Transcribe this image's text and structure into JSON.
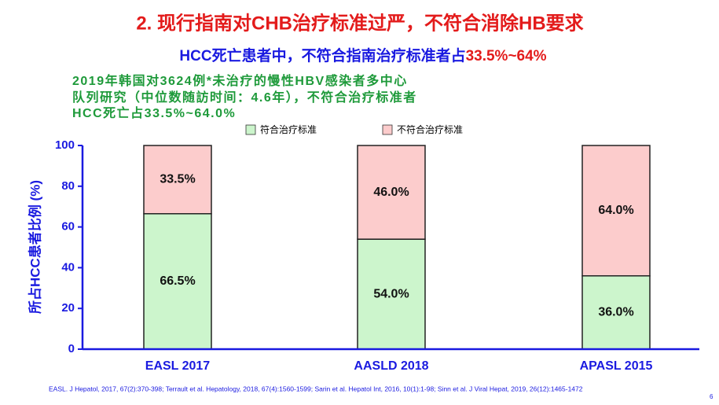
{
  "header": {
    "title": "2. 现行指南对CHB治疗标准过严，不符合消除HB要求",
    "subtitle": "HCC死亡患者中，不符合指南治疗标准者占",
    "subtitle_highlight": "33.5%~64%"
  },
  "description": [
    "2019年韩国对3624例*未治疗的慢性HBV感染者多中心",
    "队列研究（中位数随訪时间：4.6年），不符合治疗标准者",
    "HCC死亡占33.5%~64.0%"
  ],
  "chart_data": {
    "type": "stacked_bar",
    "y_label": "所占HCC患者比例 (%)",
    "categories": [
      "EASL 2017",
      "AASLD 2018",
      "APASL 2015"
    ],
    "series": [
      {
        "name": "符合治疗标准",
        "color": "#ccf5cc",
        "values": [
          66.5,
          54.0,
          36.0
        ],
        "value_labels": [
          "66.5%",
          "54.0%",
          "36.0%"
        ]
      },
      {
        "name": "不符合治疗标准",
        "color": "#fccccc",
        "values": [
          33.5,
          46.0,
          64.0
        ],
        "value_labels": [
          "33.5%",
          "46.0%",
          "64.0%"
        ]
      }
    ],
    "ylim": [
      0,
      100
    ],
    "yticks": [
      0,
      20,
      40,
      60,
      80,
      100
    ],
    "legend": "top"
  },
  "footnote": "EASL. J Hepatol, 2017, 67(2):370-398; Terrault et al. Hepatology, 2018, 67(4):1560-1599; Sarin et al. Hepatol Int, 2016, 10(1):1-98; Sinn et al. J Viral Hepat, 2019, 26(12):1465-1472",
  "page_number": "6"
}
